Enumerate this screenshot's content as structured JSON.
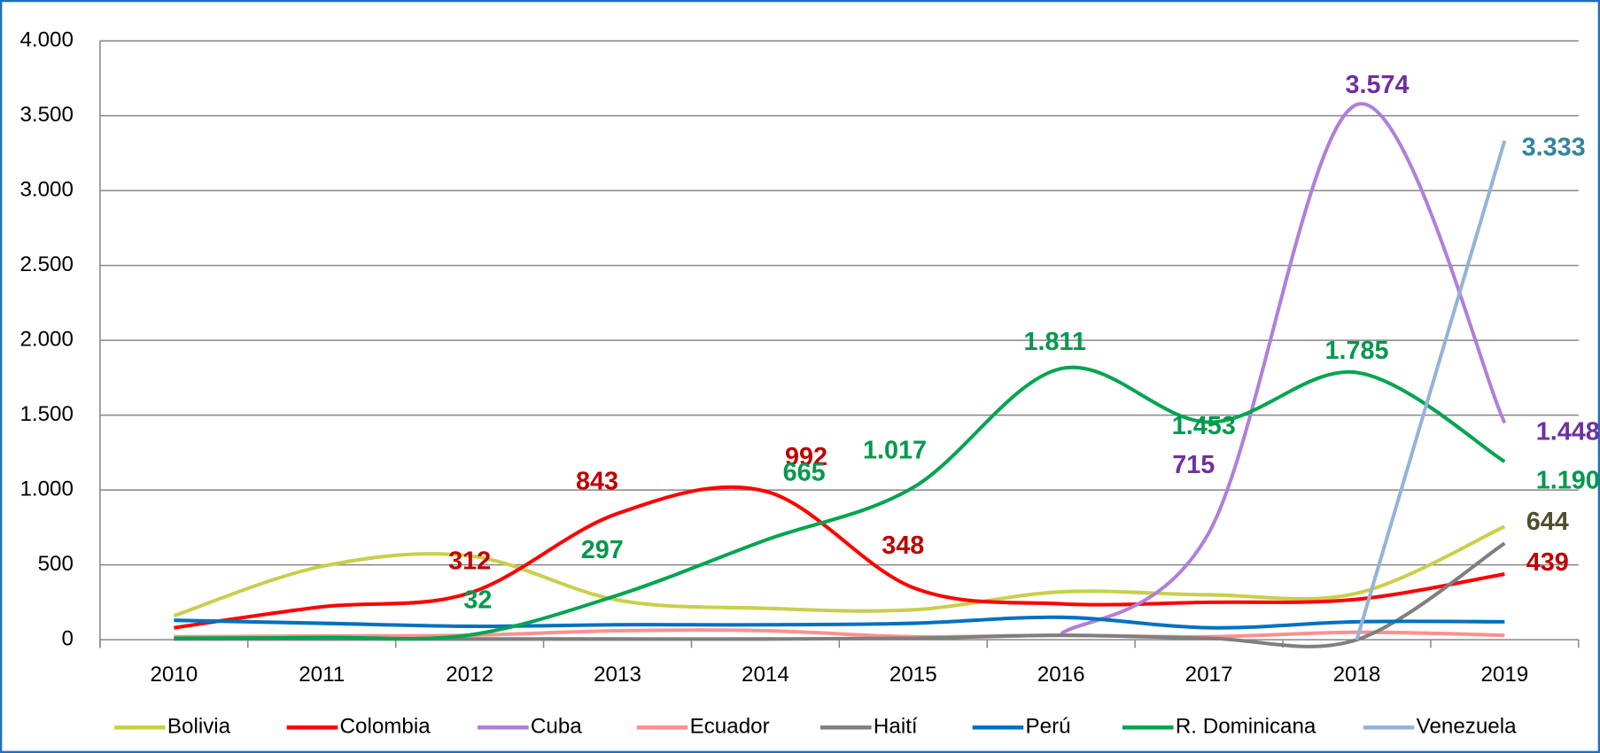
{
  "chart_data": {
    "type": "line",
    "categories": [
      "2010",
      "2011",
      "2012",
      "2013",
      "2014",
      "2015",
      "2016",
      "2017",
      "2018",
      "2019"
    ],
    "ylim": [
      0,
      4000
    ],
    "yticks": [
      0,
      500,
      {
        "value": 1000,
        "label": "1.000"
      },
      {
        "value": 1500,
        "label": "1.500"
      },
      {
        "value": 2000,
        "label": "2.000"
      },
      {
        "value": 2500,
        "label": "2.500"
      },
      {
        "value": 3000,
        "label": "3.000"
      },
      {
        "value": 3500,
        "label": "3.500"
      },
      {
        "value": 4000,
        "label": "4.000"
      }
    ],
    "grid": true,
    "legend": "bottom",
    "series": [
      {
        "name": "Bolivia",
        "color": "#c8cf4a",
        "values": [
          160,
          490,
          560,
          265,
          210,
          200,
          320,
          300,
          310,
          756
        ]
      },
      {
        "name": "Colombia",
        "color": "#ff0000",
        "label_color": "#c00000",
        "values": [
          80,
          220,
          312,
          843,
          992,
          348,
          240,
          250,
          270,
          439
        ],
        "value_labels": [
          null,
          null,
          "312",
          "843",
          "992",
          "348",
          null,
          null,
          null,
          "439"
        ]
      },
      {
        "name": "Cuba",
        "color": "#b07fd9",
        "label_color": "#7030a0",
        "values": [
          null,
          null,
          null,
          null,
          null,
          null,
          40,
          715,
          3574,
          1448
        ],
        "value_labels": [
          null,
          null,
          null,
          null,
          null,
          null,
          null,
          "715",
          "3.574",
          "1.448"
        ]
      },
      {
        "name": "Ecuador",
        "color": "#ff9090",
        "values": [
          20,
          25,
          30,
          60,
          60,
          20,
          30,
          20,
          50,
          30
        ]
      },
      {
        "name": "Haití",
        "color": "#7f7f7f",
        "label_color": "#4f4f2f",
        "values": [
          5,
          5,
          5,
          5,
          5,
          10,
          30,
          10,
          0,
          644
        ],
        "value_labels": [
          null,
          null,
          null,
          null,
          null,
          null,
          null,
          null,
          null,
          "644"
        ]
      },
      {
        "name": "Perú",
        "color": "#0070c0",
        "values": [
          130,
          110,
          90,
          100,
          100,
          110,
          150,
          80,
          120,
          120
        ]
      },
      {
        "name": "R. Dominicana",
        "color": "#00a550",
        "label_color": "#00994c",
        "values": [
          10,
          15,
          32,
          297,
          665,
          1017,
          1811,
          1453,
          1785,
          1190
        ],
        "value_labels": [
          null,
          null,
          "32",
          "297",
          "665",
          "1.017",
          "1.811",
          "1.453",
          "1.785",
          "1.190"
        ]
      },
      {
        "name": "Venezuela",
        "color": "#95b3d7",
        "label_color": "#31849b",
        "values": [
          null,
          null,
          null,
          null,
          null,
          null,
          null,
          null,
          0,
          3333
        ],
        "value_labels": [
          null,
          null,
          null,
          null,
          null,
          null,
          null,
          null,
          null,
          "3.333"
        ]
      }
    ]
  }
}
